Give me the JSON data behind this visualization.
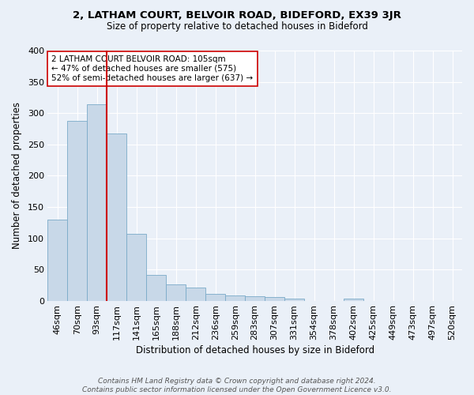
{
  "title": "2, LATHAM COURT, BELVOIR ROAD, BIDEFORD, EX39 3JR",
  "subtitle": "Size of property relative to detached houses in Bideford",
  "xlabel": "Distribution of detached houses by size in Bideford",
  "ylabel": "Number of detached properties",
  "categories": [
    "46sqm",
    "70sqm",
    "93sqm",
    "117sqm",
    "141sqm",
    "165sqm",
    "188sqm",
    "212sqm",
    "236sqm",
    "259sqm",
    "283sqm",
    "307sqm",
    "331sqm",
    "354sqm",
    "378sqm",
    "402sqm",
    "425sqm",
    "449sqm",
    "473sqm",
    "497sqm",
    "520sqm"
  ],
  "bar_heights": [
    130,
    288,
    314,
    268,
    107,
    42,
    26,
    21,
    11,
    9,
    7,
    6,
    4,
    0,
    0,
    4,
    0,
    0,
    0,
    0,
    0
  ],
  "bar_color": "#c8d8e8",
  "bar_edge_color": "#7aaac8",
  "background_color": "#eaf0f8",
  "grid_color": "#ffffff",
  "vline_x_index": 3,
  "vline_color": "#cc0000",
  "annotation_text": "2 LATHAM COURT BELVOIR ROAD: 105sqm\n← 47% of detached houses are smaller (575)\n52% of semi-detached houses are larger (637) →",
  "annotation_box_color": "#ffffff",
  "annotation_box_edge": "#cc0000",
  "footer": "Contains HM Land Registry data © Crown copyright and database right 2024.\nContains public sector information licensed under the Open Government Licence v3.0.",
  "ylim": [
    0,
    400
  ],
  "yticks": [
    0,
    50,
    100,
    150,
    200,
    250,
    300,
    350,
    400
  ],
  "title_fontsize": 9.5,
  "subtitle_fontsize": 8.5,
  "ylabel_fontsize": 8.5,
  "xlabel_fontsize": 8.5,
  "tick_fontsize": 8,
  "annotation_fontsize": 7.5,
  "footer_fontsize": 6.5
}
